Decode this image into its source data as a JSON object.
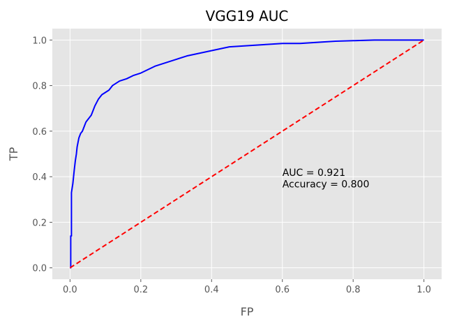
{
  "chart_data": {
    "type": "line",
    "title": "VGG19 AUC",
    "xlabel": "FP",
    "ylabel": "TP",
    "xlim": [
      -0.05,
      1.05
    ],
    "ylim": [
      -0.05,
      1.05
    ],
    "xticks": [
      "0.0",
      "0.2",
      "0.4",
      "0.6",
      "0.8",
      "1.0"
    ],
    "yticks": [
      "0.0",
      "0.2",
      "0.4",
      "0.6",
      "0.8",
      "1.0"
    ],
    "grid": true,
    "background": "#e5e5e5",
    "gridColor": "#ffffff",
    "series": [
      {
        "color": "#0000ff",
        "style": "solid",
        "points": [
          [
            0.0,
            0.0
          ],
          [
            0.002,
            0.0
          ],
          [
            0.002,
            0.14
          ],
          [
            0.004,
            0.14
          ],
          [
            0.004,
            0.33
          ],
          [
            0.006,
            0.35
          ],
          [
            0.008,
            0.37
          ],
          [
            0.01,
            0.4
          ],
          [
            0.012,
            0.43
          ],
          [
            0.015,
            0.47
          ],
          [
            0.018,
            0.5
          ],
          [
            0.02,
            0.53
          ],
          [
            0.025,
            0.57
          ],
          [
            0.03,
            0.59
          ],
          [
            0.035,
            0.6
          ],
          [
            0.04,
            0.62
          ],
          [
            0.045,
            0.64
          ],
          [
            0.05,
            0.65
          ],
          [
            0.06,
            0.67
          ],
          [
            0.065,
            0.69
          ],
          [
            0.07,
            0.71
          ],
          [
            0.08,
            0.74
          ],
          [
            0.09,
            0.76
          ],
          [
            0.1,
            0.77
          ],
          [
            0.11,
            0.78
          ],
          [
            0.12,
            0.8
          ],
          [
            0.14,
            0.82
          ],
          [
            0.16,
            0.83
          ],
          [
            0.18,
            0.845
          ],
          [
            0.2,
            0.855
          ],
          [
            0.22,
            0.87
          ],
          [
            0.24,
            0.885
          ],
          [
            0.26,
            0.895
          ],
          [
            0.28,
            0.905
          ],
          [
            0.3,
            0.915
          ],
          [
            0.33,
            0.93
          ],
          [
            0.36,
            0.94
          ],
          [
            0.39,
            0.95
          ],
          [
            0.42,
            0.96
          ],
          [
            0.45,
            0.97
          ],
          [
            0.5,
            0.975
          ],
          [
            0.55,
            0.98
          ],
          [
            0.6,
            0.985
          ],
          [
            0.65,
            0.985
          ],
          [
            0.7,
            0.99
          ],
          [
            0.75,
            0.995
          ],
          [
            0.8,
            0.997
          ],
          [
            0.86,
            1.0
          ],
          [
            1.0,
            1.0
          ]
        ]
      },
      {
        "color": "#ff0000",
        "style": "dashed",
        "points": [
          [
            0.0,
            0.0
          ],
          [
            1.0,
            1.0
          ]
        ]
      }
    ],
    "annotations": [
      {
        "text": "AUC = 0.921",
        "x": 0.6,
        "y": 0.4
      },
      {
        "text": "Accuracy = 0.800",
        "x": 0.6,
        "y": 0.35
      }
    ]
  }
}
